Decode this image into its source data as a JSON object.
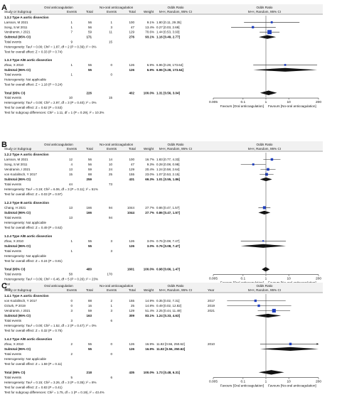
{
  "chart_data": [
    {
      "type": "forest",
      "panel": "A",
      "header": {
        "g1": "Oral anticoagulation",
        "g2": "No-oral anticoagulation",
        "study": "Study or Subgroup",
        "ev": "Events",
        "tot": "Total",
        "w": "Weight",
        "or_text": "Odds Ratio",
        "or_method": "M-H, Random, 95% CI",
        "plot_title": "Odds Ratio",
        "plot_method": "M-H, Random, 95% CI"
      },
      "axis": {
        "ticks": [
          0.005,
          0.1,
          1,
          10,
          200
        ],
        "tick_labels": [
          "0.005",
          "0.1",
          "1",
          "10",
          "200"
        ],
        "fav_left": "Favours [Oral anticoagulation]",
        "fav_right": "Favours [No-oral anticoagulation]"
      },
      "rows": [
        {
          "kind": "subhead",
          "label": "1.3.2 Type A aortic dissection"
        },
        {
          "kind": "study",
          "label": "Larsson, M 2021",
          "e1": "1",
          "n1": "56",
          "e2": "1",
          "n2": "100",
          "w": "9.1%",
          "ci": "1.80 [0.11, 29.35]",
          "or": 1.8,
          "lo": 0.11,
          "hi": 29.35
        },
        {
          "kind": "study",
          "label": "Song, S.W 2011",
          "e1": "1",
          "n1": "56",
          "e2": "3",
          "n2": "47",
          "w": "13.4%",
          "ci": "0.27 [0.03, 2.69]",
          "or": 0.27,
          "lo": 0.03,
          "hi": 2.69
        },
        {
          "kind": "study",
          "label": "Vendramin, I 2021",
          "e1": "7",
          "n1": "59",
          "e2": "11",
          "n2": "129",
          "w": "70.6%",
          "ci": "1.44 [0.53, 3.93]",
          "or": 1.44,
          "lo": 0.53,
          "hi": 3.93
        },
        {
          "kind": "subtotal",
          "label": "Subtotal (95% CI)",
          "n1": "171",
          "n2": "276",
          "w": "93.1%",
          "ci": "1.16 [0.49, 2.77]",
          "or": 1.16,
          "lo": 0.49,
          "hi": 2.77
        },
        {
          "kind": "text",
          "label": "Total events",
          "e1": "9",
          "e2": "15"
        },
        {
          "kind": "text",
          "label": "Heterogeneity: Tau² = 0.00; Chi² = 1.87, df = 2 (P = 0.39); I² = 0%"
        },
        {
          "kind": "text",
          "label": "Test for overall effect: Z = 0.33 (P = 0.74)"
        },
        {
          "kind": "gap"
        },
        {
          "kind": "subhead",
          "label": "1.3.3 Type A/B aortic dissection"
        },
        {
          "kind": "study",
          "label": "Zhao, X 2010",
          "e1": "1",
          "n1": "55",
          "e2": "0",
          "n2": "126",
          "w": "6.9%",
          "ci": "6.96 [0.28, 173.64]",
          "or": 6.96,
          "lo": 0.28,
          "hi": 173.64
        },
        {
          "kind": "subtotal",
          "label": "Subtotal (95% CI)",
          "n1": "55",
          "n2": "126",
          "w": "6.9%",
          "ci": "6.96 [0.28, 173.64]",
          "or": 6.96,
          "lo": 0.28,
          "hi": 173.64
        },
        {
          "kind": "text",
          "label": "Total events",
          "e1": "1",
          "e2": "0"
        },
        {
          "kind": "text",
          "label": "Heterogeneity: Not applicable"
        },
        {
          "kind": "text",
          "label": "Test for overall effect: Z = 1.18 (P = 0.24)"
        },
        {
          "kind": "gap"
        },
        {
          "kind": "total",
          "label": "Total (95% CI)",
          "n1": "226",
          "n2": "402",
          "w": "100.0%",
          "ci": "1.31 [0.56, 3.04]",
          "or": 1.31,
          "lo": 0.56,
          "hi": 3.04
        },
        {
          "kind": "text",
          "label": "Total events",
          "e1": "10",
          "e2": "15"
        },
        {
          "kind": "text",
          "label": "Heterogeneity: Tau² = 0.00; Chi² = 2.97, df = 3 (P = 0.40); I² = 0%"
        },
        {
          "kind": "text",
          "label": "Test for overall effect: Z = 0.62 (P = 0.53)"
        },
        {
          "kind": "text",
          "label": "Test for subgroup differences: Chi² = 1.11, df = 1 (P = 0.29), I² = 10.3%"
        }
      ]
    },
    {
      "type": "forest",
      "panel": "B",
      "header": {
        "g1": "Oral anticoagulation",
        "g2": "No-oral anticoagulation",
        "study": "Study or Subgroup",
        "ev": "Events",
        "tot": "Total",
        "w": "Weight",
        "or_text": "Odds Ratio",
        "or_method": "M-H, Random, 95% CI",
        "plot_title": "Odds Ratio",
        "plot_method": "M-H, Random, 95% CI"
      },
      "axis": {
        "ticks": [
          0.005,
          0.1,
          1,
          10,
          200
        ],
        "tick_labels": [
          "0.005",
          "0.1",
          "1",
          "10",
          "200"
        ],
        "fav_left": "Favours [Oral anticoagulation]",
        "fav_right": "Favours [No-oral anticoagulation]"
      },
      "rows": [
        {
          "kind": "subhead",
          "label": "1.2.2 Type A aortic dissection"
        },
        {
          "kind": "study",
          "label": "Larsson, M 2021",
          "e1": "12",
          "n1": "56",
          "e2": "14",
          "n2": "100",
          "w": "16.7%",
          "ci": "1.83 [0.77, 4.33]",
          "or": 1.83,
          "lo": 0.77,
          "hi": 4.33
        },
        {
          "kind": "study",
          "label": "Song, S.W 2011",
          "e1": "4",
          "n1": "56",
          "e2": "10",
          "n2": "47",
          "w": "9.3%",
          "ci": "0.28 [0.08, 0.98]",
          "or": 0.28,
          "lo": 0.08,
          "hi": 0.98
        },
        {
          "kind": "study",
          "label": "Vendramin, I 2021",
          "e1": "13",
          "n1": "59",
          "e2": "24",
          "n2": "129",
          "w": "20.4%",
          "ci": "1.24 [0.58, 2.64]",
          "or": 1.24,
          "lo": 0.58,
          "hi": 2.64
        },
        {
          "kind": "study",
          "label": "von Kodolitsch, Y 2017",
          "e1": "15",
          "n1": "88",
          "e2": "25",
          "n2": "155",
          "w": "23.0%",
          "ci": "1.07 [0.53, 2.15]",
          "or": 1.07,
          "lo": 0.53,
          "hi": 2.15
        },
        {
          "kind": "subtotal",
          "label": "Subtotal (95% CI)",
          "n1": "259",
          "n2": "431",
          "w": "69.3%",
          "ci": "1.01 [0.55, 1.86]",
          "or": 1.01,
          "lo": 0.55,
          "hi": 1.86
        },
        {
          "kind": "text",
          "label": "Total events",
          "e1": "44",
          "e2": "73"
        },
        {
          "kind": "text",
          "label": "Heterogeneity: Tau² = 0.19; Chi² = 6.06, df = 3 (P = 0.11); I² = 51%"
        },
        {
          "kind": "text",
          "label": "Test for overall effect: Z = 0.03 (P = 0.97)"
        },
        {
          "kind": "gap"
        },
        {
          "kind": "subhead",
          "label": "1.2.3 Type B aortic dissection"
        },
        {
          "kind": "study",
          "label": "Chang, H 2021",
          "e1": "13",
          "n1": "166",
          "e2": "94",
          "n2": "1044",
          "w": "27.7%",
          "ci": "0.86 [0.47, 1.57]",
          "or": 0.86,
          "lo": 0.47,
          "hi": 1.57
        },
        {
          "kind": "subtotal",
          "label": "Subtotal (95% CI)",
          "n1": "166",
          "n2": "1044",
          "w": "27.7%",
          "ci": "0.86 [0.47, 1.57]",
          "or": 0.86,
          "lo": 0.47,
          "hi": 1.57
        },
        {
          "kind": "text",
          "label": "Total events",
          "e1": "13",
          "e2": "94"
        },
        {
          "kind": "text",
          "label": "Heterogeneity: Not applicable"
        },
        {
          "kind": "text",
          "label": "Test for overall effect: Z = 0.49 (P = 0.62)"
        },
        {
          "kind": "gap"
        },
        {
          "kind": "subhead",
          "label": "1.2.4 Type A/B aortic dissection"
        },
        {
          "kind": "study",
          "label": "Zhao, X 2010",
          "e1": "1",
          "n1": "55",
          "e2": "3",
          "n2": "126",
          "w": "3.0%",
          "ci": "0.76 [0.08, 7.47]",
          "or": 0.76,
          "lo": 0.08,
          "hi": 7.47
        },
        {
          "kind": "subtotal",
          "label": "Subtotal (95% CI)",
          "n1": "55",
          "n2": "126",
          "w": "3.0%",
          "ci": "0.76 [0.08, 7.47]",
          "or": 0.76,
          "lo": 0.08,
          "hi": 7.47
        },
        {
          "kind": "text",
          "label": "Total events",
          "e1": "1",
          "e2": "3"
        },
        {
          "kind": "text",
          "label": "Heterogeneity: Not applicable"
        },
        {
          "kind": "text",
          "label": "Test for overall effect: Z = 0.24 (P = 0.81)"
        },
        {
          "kind": "gap"
        },
        {
          "kind": "total",
          "label": "Total (95% CI)",
          "n1": "480",
          "n2": "1601",
          "w": "100.0%",
          "ci": "0.98 [0.66, 1.47]",
          "or": 0.98,
          "lo": 0.66,
          "hi": 1.47
        },
        {
          "kind": "text",
          "label": "Total events",
          "e1": "58",
          "e2": "170"
        },
        {
          "kind": "text",
          "label": "Heterogeneity: Tau² = 0.06; Chi² = 6.46, df = 5 (P = 0.26); I² = 23%"
        },
        {
          "kind": "text",
          "label": "Test for overall effect: Z = 0.09 (P = 0.93)"
        },
        {
          "kind": "text",
          "label": "Test for subgroup differences: Chi² = 0.17, df = 2 (P = 0.92), I² = 0%"
        }
      ]
    },
    {
      "type": "forest",
      "panel": "C",
      "header": {
        "g1": "Oral anticoagulation",
        "g2": "No-oral anticoagulation",
        "study": "Study or Subgroup",
        "ev": "Events",
        "tot": "Total",
        "w": "Weight",
        "or_text": "Odds Ratio",
        "or_method": "M-H, Random, 95% CI",
        "year": "Year",
        "plot_title": "Odds Ratio",
        "plot_method": "M-H, Random, 95% CI"
      },
      "axis": {
        "ticks": [
          0.005,
          0.1,
          1,
          10,
          200
        ],
        "tick_labels": [
          "0.005",
          "0.1",
          "1",
          "10",
          "200"
        ],
        "fav_left": "Favours [Oral anticoagulation]",
        "fav_right": "Favours [No-oral anticoagulation]"
      },
      "rows": [
        {
          "kind": "subhead",
          "label": "1.4.1 Type A aortic dissection"
        },
        {
          "kind": "study",
          "label": "von Kodolitsch, Y 2017",
          "e1": "0",
          "n1": "88",
          "e2": "2",
          "n2": "155",
          "w": "14.9%",
          "ci": "0.35 [0.02, 7.31]",
          "year": "2017",
          "or": 0.35,
          "lo": 0.02,
          "hi": 7.31
        },
        {
          "kind": "study",
          "label": "Ozturk, P 2019",
          "e1": "0",
          "n1": "16",
          "e2": "1",
          "n2": "25",
          "w": "14.8%",
          "ci": "0.49 [0.02, 12.82]",
          "year": "2019",
          "or": 0.49,
          "lo": 0.02,
          "hi": 12.82
        },
        {
          "kind": "study",
          "label": "Vendramin, I 2021",
          "e1": "3",
          "n1": "59",
          "e2": "3",
          "n2": "129",
          "w": "51.4%",
          "ci": "2.25 [0.44, 11.49]",
          "year": "2021",
          "or": 2.25,
          "lo": 0.44,
          "hi": 11.49
        },
        {
          "kind": "subtotal",
          "label": "Subtotal (95% CI)",
          "n1": "163",
          "n2": "309",
          "w": "83.1%",
          "ci": "1.24 [0.33, 4.63]",
          "or": 1.24,
          "lo": 0.33,
          "hi": 4.63
        },
        {
          "kind": "text",
          "label": "Total events",
          "e1": "3",
          "e2": "6"
        },
        {
          "kind": "text",
          "label": "Heterogeneity: Tau² = 0.00; Chi² = 1.52, df = 2 (P = 0.47); I² = 0%"
        },
        {
          "kind": "text",
          "label": "Test for overall effect: Z = 0.32 (P = 0.75)"
        },
        {
          "kind": "gap"
        },
        {
          "kind": "subhead",
          "label": "1.4.2 Type A/B aortic dissection"
        },
        {
          "kind": "study",
          "label": "Zhao, X 2010",
          "e1": "2",
          "n1": "55",
          "e2": "0",
          "n2": "126",
          "w": "16.9%",
          "ci": "11.82 [0.56, 250.62]",
          "year": "2010",
          "or": 11.82,
          "lo": 0.56,
          "hi": 250.62
        },
        {
          "kind": "subtotal",
          "label": "Subtotal (95% CI)",
          "n1": "55",
          "n2": "126",
          "w": "16.9%",
          "ci": "11.82 [0.56, 250.62]",
          "or": 11.82,
          "lo": 0.56,
          "hi": 250.62
        },
        {
          "kind": "text",
          "label": "Total events",
          "e1": "2",
          "e2": "0"
        },
        {
          "kind": "text",
          "label": "Heterogeneity: Not applicable"
        },
        {
          "kind": "text",
          "label": "Test for overall effect: Z = 1.59 (P = 0.11)"
        },
        {
          "kind": "gap"
        },
        {
          "kind": "total",
          "label": "Total (95% CI)",
          "n1": "218",
          "n2": "435",
          "w": "100.0%",
          "ci": "1.73 [0.48, 6.31]",
          "or": 1.73,
          "lo": 0.48,
          "hi": 6.31
        },
        {
          "kind": "text",
          "label": "Total events",
          "e1": "5",
          "e2": "6"
        },
        {
          "kind": "text",
          "label": "Heterogeneity: Tau² = 0.15; Chi² = 3.26, df = 3 (P = 0.35); I² = 8%"
        },
        {
          "kind": "text",
          "label": "Test for overall effect: Z = 0.83 (P = 0.41)"
        },
        {
          "kind": "text",
          "label": "Test for subgroup differences: Chi² = 1.75, df = 1 (P = 0.19), I² = 43.4%"
        }
      ]
    }
  ]
}
